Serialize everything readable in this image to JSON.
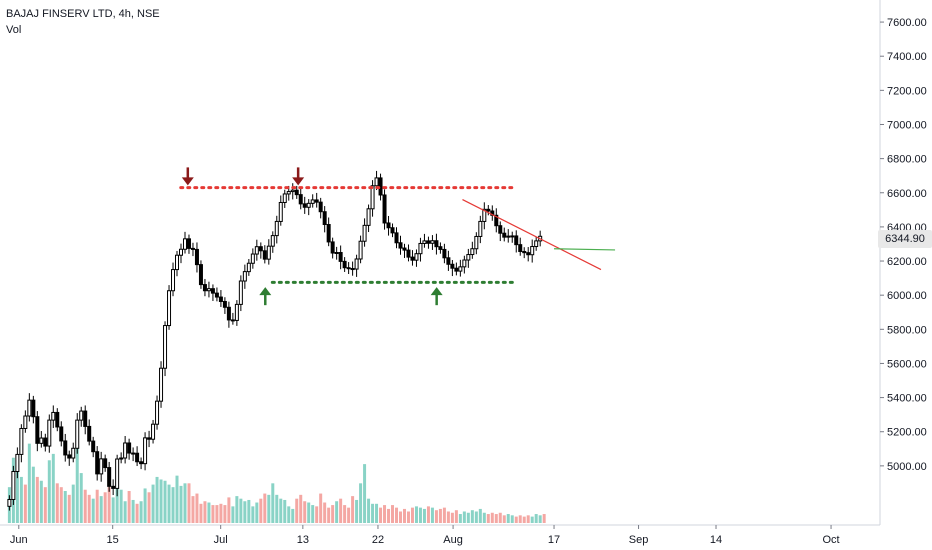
{
  "legend": {
    "title": "BAJAJ FINSERV LTD, 4h, NSE",
    "volume_label": "Vol"
  },
  "colors": {
    "up_candle": "#ffffff",
    "down_candle": "#000000",
    "volume_up": "#89d3c6",
    "volume_down": "#f4a7a3",
    "resistance": "#e53935",
    "support": "#2e7d32",
    "trendline": "#e53935",
    "projection": "#4caf50",
    "arrow_down": "#8b1a1a",
    "arrow_up": "#2e7d32",
    "axis_line": "#d1d4dc"
  },
  "price_tag": {
    "label": "6344.90",
    "value": 6344.9
  },
  "chart_data": {
    "type": "candlestick",
    "title": "BAJAJ FINSERV LTD, 4h, NSE",
    "xlabel": "",
    "ylabel": "",
    "ylim": [
      4800,
      7700
    ],
    "y_ticks": [
      5000,
      5200,
      5400,
      5600,
      5800,
      6000,
      6200,
      6400,
      6600,
      6800,
      7000,
      7200,
      7400,
      7600
    ],
    "y_tick_labels": [
      "5000.00",
      "5200.00",
      "5400.00",
      "5600.00",
      "5800.00",
      "6000.00",
      "6200.00",
      "6400.00",
      "6600.00",
      "6800.00",
      "7000.00",
      "7200.00",
      "7400.00",
      "7600.00"
    ],
    "x_tick_labels": [
      {
        "label": "Jun",
        "bar": 4
      },
      {
        "label": "15",
        "bar": 44
      },
      {
        "label": "Jul",
        "bar": 90
      },
      {
        "label": "13",
        "bar": 125
      },
      {
        "label": "22",
        "bar": 157
      },
      {
        "label": "Aug",
        "bar": 189
      },
      {
        "label": "17",
        "bar": 232
      },
      {
        "label": "Sep",
        "bar": 268
      },
      {
        "label": "14",
        "bar": 301
      },
      {
        "label": "Oct",
        "bar": 350
      }
    ],
    "bar_range": [
      -4,
      370
    ],
    "close_values": [
      4803,
      4967,
      5067,
      5219,
      5292,
      5385,
      5288,
      5132,
      5163,
      5116,
      5268,
      5313,
      5228,
      5146,
      5064,
      5046,
      5103,
      5268,
      5321,
      5231,
      5145,
      5083,
      4953,
      5041,
      4990,
      4880,
      4868,
      5040,
      5046,
      5134,
      5075,
      5074,
      5024,
      5013,
      5164,
      5156,
      5244,
      5379,
      5572,
      5822,
      6026,
      6150,
      6234,
      6269,
      6330,
      6274,
      6268,
      6179,
      6062,
      6026,
      6038,
      6012,
      5989,
      5963,
      5929,
      5855,
      5852,
      5946,
      6083,
      6138,
      6187,
      6241,
      6284,
      6260,
      6211,
      6287,
      6349,
      6432,
      6543,
      6593,
      6607,
      6615,
      6589,
      6535,
      6515,
      6538,
      6558,
      6545,
      6489,
      6414,
      6312,
      6247,
      6250,
      6198,
      6161,
      6156,
      6153,
      6212,
      6316,
      6409,
      6506,
      6641,
      6687,
      6587,
      6423,
      6395,
      6365,
      6307,
      6276,
      6264,
      6223,
      6205,
      6243,
      6303,
      6318,
      6304,
      6319,
      6284,
      6268,
      6219,
      6181,
      6158,
      6141,
      6166,
      6206,
      6238,
      6272,
      6344,
      6432,
      6503,
      6493,
      6468,
      6407,
      6363,
      6340,
      6346,
      6347,
      6296,
      6256,
      6249,
      6237,
      6285,
      6318,
      6344.9
    ],
    "ohlc_sample_note": "",
    "volume_values": [
      0.28,
      0.51,
      0.44,
      0.36,
      0.3,
      0.62,
      0.44,
      0.36,
      0.33,
      0.28,
      0.49,
      0.54,
      0.31,
      0.28,
      0.25,
      0.22,
      0.3,
      0.6,
      0.39,
      0.26,
      0.22,
      0.19,
      0.26,
      0.21,
      0.24,
      0.28,
      0.2,
      0.3,
      0.26,
      0.17,
      0.25,
      0.18,
      0.15,
      0.17,
      0.27,
      0.24,
      0.3,
      0.36,
      0.34,
      0.33,
      0.3,
      0.28,
      0.37,
      0.29,
      0.31,
      0.31,
      0.21,
      0.23,
      0.15,
      0.17,
      0.16,
      0.14,
      0.14,
      0.15,
      0.14,
      0.2,
      0.13,
      0.21,
      0.19,
      0.17,
      0.18,
      0.13,
      0.16,
      0.19,
      0.23,
      0.22,
      0.31,
      0.22,
      0.19,
      0.18,
      0.13,
      0.11,
      0.19,
      0.22,
      0.17,
      0.16,
      0.14,
      0.13,
      0.23,
      0.16,
      0.12,
      0.14,
      0.17,
      0.19,
      0.14,
      0.12,
      0.21,
      0.18,
      0.31,
      0.46,
      0.19,
      0.15,
      0.15,
      0.12,
      0.14,
      0.11,
      0.14,
      0.12,
      0.09,
      0.11,
      0.09,
      0.12,
      0.13,
      0.12,
      0.11,
      0.13,
      0.12,
      0.1,
      0.11,
      0.12,
      0.09,
      0.08,
      0.1,
      0.07,
      0.09,
      0.08,
      0.1,
      0.09,
      0.11,
      0.08,
      0.07,
      0.08,
      0.07,
      0.08,
      0.06,
      0.07,
      0.06,
      0.05,
      0.06,
      0.05,
      0.06,
      0.05,
      0.07,
      0.06,
      0.07
    ],
    "volume_up_flags": [
      1,
      1,
      1,
      1,
      0,
      1,
      1,
      0,
      1,
      0,
      1,
      1,
      0,
      0,
      1,
      0,
      1,
      1,
      1,
      0,
      0,
      1,
      0,
      1,
      0,
      0,
      1,
      1,
      1,
      1,
      0,
      1,
      0,
      1,
      1,
      0,
      1,
      1,
      1,
      1,
      1,
      1,
      1,
      1,
      1,
      0,
      0,
      0,
      0,
      0,
      1,
      0,
      0,
      0,
      0,
      0,
      1,
      1,
      1,
      1,
      1,
      1,
      1,
      0,
      0,
      1,
      1,
      1,
      1,
      1,
      1,
      1,
      0,
      0,
      0,
      1,
      1,
      0,
      0,
      0,
      0,
      0,
      1,
      0,
      0,
      0,
      0,
      1,
      1,
      1,
      1,
      1,
      1,
      0,
      0,
      0,
      0,
      0,
      0,
      0,
      0,
      0,
      1,
      1,
      1,
      0,
      1,
      0,
      0,
      0,
      0,
      0,
      0,
      1,
      1,
      1,
      1,
      1,
      1,
      1,
      0,
      0,
      0,
      0,
      0,
      1,
      1,
      0,
      0,
      0,
      0,
      1,
      1,
      1
    ],
    "annotations": {
      "resistance_level": 6630,
      "support_level": 6075,
      "resistance_from_bar": 73,
      "resistance_to_bar": 215,
      "support_from_bar": 112,
      "support_to_bar": 215,
      "trendline_from": {
        "bar": 193,
        "price": 6560
      },
      "trendline_to": {
        "bar": 252,
        "price": 6150
      },
      "projection_from": {
        "bar": 232,
        "price": 6272
      },
      "projection_to": {
        "bar": 258,
        "price": 6265
      },
      "down_arrows": [
        {
          "bar": 76,
          "price": 6690
        },
        {
          "bar": 123,
          "price": 6690
        }
      ],
      "up_arrows": [
        {
          "bar": 109,
          "price": 6000
        },
        {
          "bar": 182,
          "price": 6000
        }
      ]
    }
  }
}
